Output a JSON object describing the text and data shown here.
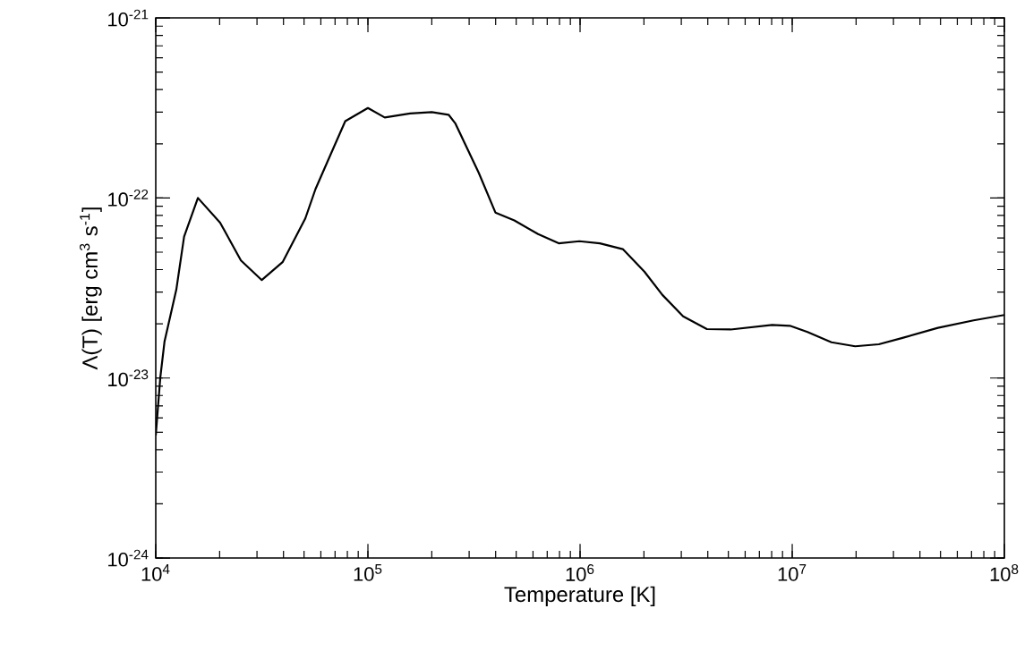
{
  "chart_data": {
    "type": "line",
    "xlabel": "Temperature [K]",
    "ylabel": "Λ(T) [erg cm$^{3}$ s$^{-1}$]",
    "log": "xy",
    "xlim": [
      10000,
      100000000
    ],
    "ylim": [
      1e-24,
      1e-21
    ],
    "xticks": [
      {
        "value": 10000,
        "label": "10$^{4}$"
      },
      {
        "value": 100000,
        "label": "10$^{5}$"
      },
      {
        "value": 1000000,
        "label": "10$^{6}$"
      },
      {
        "value": 10000000,
        "label": "10$^{7}$"
      },
      {
        "value": 100000000,
        "label": "10$^{8}$"
      }
    ],
    "yticks": [
      {
        "value": 1e-24,
        "label": "10$^{-24}$"
      },
      {
        "value": 1e-23,
        "label": "10$^{-23}$"
      },
      {
        "value": 1e-22,
        "label": "10$^{-22}$"
      },
      {
        "value": 1e-21,
        "label": "10$^{-21}$"
      }
    ],
    "x": [
      10000,
      10500,
      11000,
      11600,
      12500,
      13600,
      15800,
      20100,
      25200,
      31600,
      39600,
      50700,
      56600,
      66500,
      78200,
      100000,
      120000,
      158000,
      200000,
      240000,
      258000,
      333000,
      399000,
      490000,
      634000,
      793000,
      993000,
      1240000,
      1590000,
      2010000,
      2440000,
      3060000,
      3960000,
      5120000,
      8040000,
      9750000,
      11800000,
      15300000,
      19800000,
      25600000,
      33100000,
      48600000,
      71600000,
      100000000
    ],
    "series": [
      {
        "color": "#000000",
        "values": [
          4.8e-24,
          1e-23,
          1.6e-23,
          2.1e-23,
          3.1e-23,
          6.1e-23,
          1e-22,
          7.3e-23,
          4.5e-23,
          3.5e-23,
          4.4e-23,
          7.7e-23,
          1.12e-22,
          1.73e-22,
          2.67e-22,
          3.16e-22,
          2.8e-22,
          2.95e-22,
          3e-22,
          2.9e-22,
          2.6e-22,
          1.38e-22,
          8.3e-23,
          7.5e-23,
          6.3e-23,
          5.6e-23,
          5.75e-23,
          5.6e-23,
          5.2e-23,
          3.9e-23,
          2.9e-23,
          2.2e-23,
          1.87e-23,
          1.86e-23,
          1.97e-23,
          1.95e-23,
          1.8e-23,
          1.58e-23,
          1.5e-23,
          1.54e-23,
          1.67e-23,
          1.9e-23,
          2.09e-23,
          2.24e-23
        ]
      }
    ]
  }
}
